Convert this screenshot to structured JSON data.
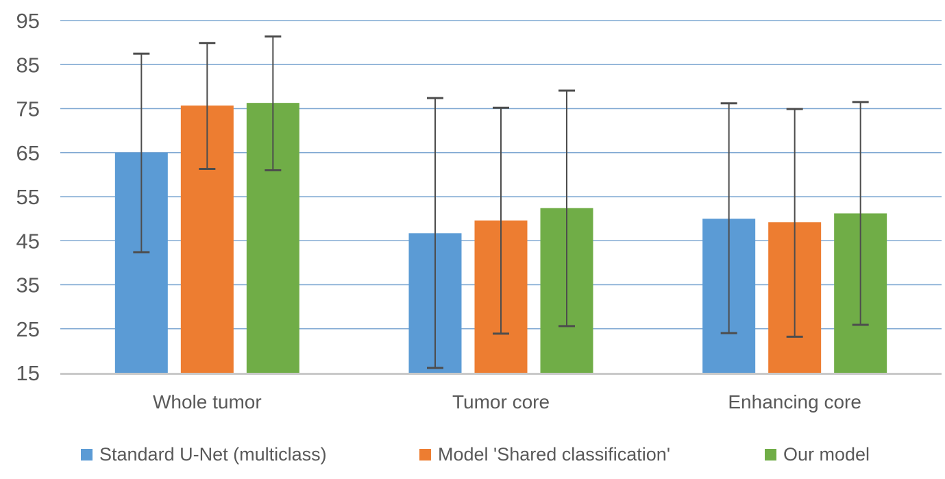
{
  "chart_data": {
    "type": "bar",
    "title": "",
    "xlabel": "",
    "ylabel": "",
    "categories": [
      "Whole tumor",
      "Tumor core",
      "Enhancing core"
    ],
    "series": [
      {
        "name": "Standard U-Net (multiclass)",
        "color": "#5B9BD5",
        "values": [
          65.0,
          46.7,
          50.0
        ],
        "error_low": [
          42.4,
          16.1,
          24.0
        ],
        "error_high": [
          87.5,
          77.4,
          76.2
        ]
      },
      {
        "name": "Model 'Shared classification'",
        "color": "#ED7D31",
        "values": [
          75.7,
          49.6,
          49.2
        ],
        "error_low": [
          61.3,
          23.9,
          23.2
        ],
        "error_high": [
          89.9,
          75.2,
          74.9
        ]
      },
      {
        "name": "Our model",
        "color": "#70AD47",
        "values": [
          76.3,
          52.4,
          51.2
        ],
        "error_low": [
          61.0,
          25.6,
          25.9
        ],
        "error_high": [
          91.4,
          79.1,
          76.5
        ]
      }
    ],
    "ylim": [
      15,
      95
    ],
    "ytick_labels": [
      "15",
      "25",
      "35",
      "45",
      "55",
      "65",
      "75",
      "85",
      "95"
    ],
    "grid": true,
    "legend_position": "bottom"
  },
  "style_colors": {
    "gridline": "#7FA8D2",
    "axis_baseline": "#C9C9C9",
    "error_bar": "#4D4D4D",
    "tick_text": "#595959",
    "category_text": "#595959",
    "legend_text": "#595959"
  }
}
